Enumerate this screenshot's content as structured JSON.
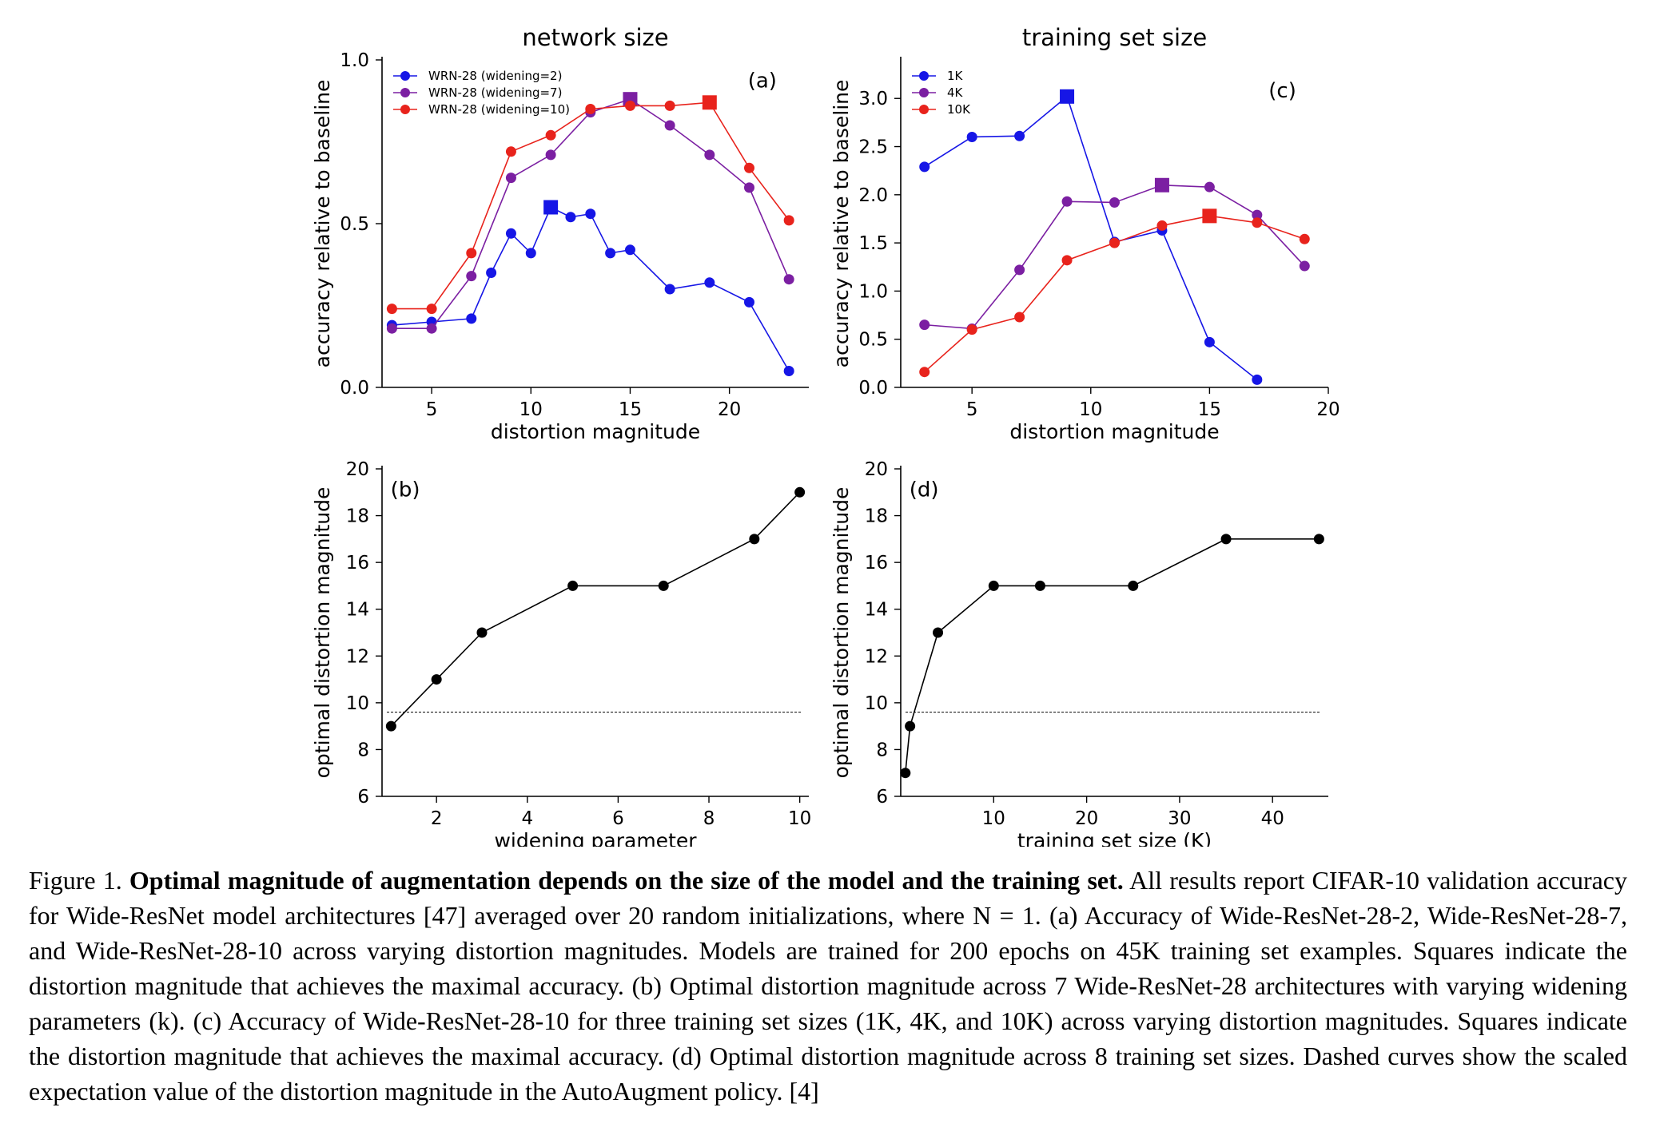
{
  "figure": {
    "chart_data": [
      {
        "type": "line",
        "panel": "(a)",
        "title": "network size",
        "xlabel": "distortion magnitude",
        "ylabel": "accuracy relative to baseline",
        "xlim": [
          2.5,
          24
        ],
        "ylim": [
          0.0,
          1.0
        ],
        "xticks": [
          5,
          10,
          15,
          20
        ],
        "yticks": [
          0.0,
          0.5,
          1.0
        ],
        "ytick_labels": [
          "0.0",
          "0.5",
          "1.0"
        ],
        "legend": "top-left",
        "grid": false,
        "series": [
          {
            "name": "WRN-28 (widening=2)",
            "color": "#1616e6",
            "x": [
              3,
              5,
              7,
              8,
              9,
              10,
              11,
              12,
              13,
              14,
              15,
              17,
              19,
              21,
              23
            ],
            "y": [
              0.19,
              0.2,
              0.21,
              0.35,
              0.47,
              0.41,
              0.55,
              0.52,
              0.53,
              0.41,
              0.42,
              0.3,
              0.32,
              0.26,
              0.05
            ],
            "best_x": 11
          },
          {
            "name": "WRN-28 (widening=7)",
            "color": "#7b1fa2",
            "x": [
              3,
              5,
              7,
              9,
              11,
              13,
              15,
              17,
              19,
              21,
              23
            ],
            "y": [
              0.18,
              0.18,
              0.34,
              0.64,
              0.71,
              0.84,
              0.88,
              0.8,
              0.71,
              0.61,
              0.33
            ],
            "best_x": 15
          },
          {
            "name": "WRN-28 (widening=10)",
            "color": "#e8231c",
            "x": [
              3,
              5,
              7,
              9,
              11,
              13,
              15,
              17,
              19,
              21,
              23
            ],
            "y": [
              0.24,
              0.24,
              0.41,
              0.72,
              0.77,
              0.85,
              0.86,
              0.86,
              0.87,
              0.67,
              0.51
            ],
            "best_x": 19
          }
        ]
      },
      {
        "type": "line",
        "panel": "(b)",
        "title": "",
        "xlabel": "widening parameter",
        "ylabel": "optimal distortion magnitude",
        "xlim": [
          0.8,
          10.2
        ],
        "ylim": [
          6,
          20
        ],
        "xticks": [
          2,
          4,
          6,
          8,
          10
        ],
        "yticks": [
          6,
          8,
          10,
          12,
          14,
          16,
          18,
          20
        ],
        "reference_line": 9.6,
        "grid": false,
        "series": [
          {
            "color": "#000000",
            "x": [
              1,
              2,
              3,
              5,
              7,
              9,
              10
            ],
            "y": [
              9,
              11,
              13,
              15,
              15,
              17,
              19
            ]
          }
        ]
      },
      {
        "type": "line",
        "panel": "(c)",
        "title": "training set size",
        "xlabel": "distortion magnitude",
        "ylabel": "accuracy relative to baseline",
        "xlim": [
          2,
          20
        ],
        "ylim": [
          0.0,
          3.4
        ],
        "xticks": [
          5,
          10,
          15,
          20
        ],
        "yticks": [
          0.0,
          0.5,
          1.0,
          1.5,
          2.0,
          2.5,
          3.0
        ],
        "ytick_labels": [
          "0.0",
          "0.5",
          "1.0",
          "1.5",
          "2.0",
          "2.5",
          "3.0"
        ],
        "legend": "top-left",
        "grid": false,
        "series": [
          {
            "name": "1K",
            "color": "#1616e6",
            "x": [
              3,
              5,
              7,
              9,
              11,
              13,
              15,
              17
            ],
            "y": [
              2.29,
              2.6,
              2.61,
              3.02,
              1.51,
              1.63,
              0.47,
              0.08
            ],
            "best_x": 9
          },
          {
            "name": "4K",
            "color": "#7b1fa2",
            "x": [
              3,
              5,
              7,
              9,
              11,
              13,
              15,
              17,
              19
            ],
            "y": [
              0.65,
              0.61,
              1.22,
              1.93,
              1.92,
              2.1,
              2.08,
              1.79,
              1.26
            ],
            "best_x": 13
          },
          {
            "name": "10K",
            "color": "#e8231c",
            "x": [
              3,
              5,
              7,
              9,
              11,
              13,
              15,
              17,
              19
            ],
            "y": [
              0.16,
              0.6,
              0.73,
              1.32,
              1.5,
              1.68,
              1.78,
              1.71,
              1.54
            ],
            "best_x": 15
          }
        ]
      },
      {
        "type": "line",
        "panel": "(d)",
        "title": "",
        "xlabel": "training set size (K)",
        "ylabel": "optimal distortion magnitude",
        "xlim": [
          0,
          46
        ],
        "ylim": [
          6,
          20
        ],
        "xticks": [
          10,
          20,
          30,
          40
        ],
        "yticks": [
          6,
          8,
          10,
          12,
          14,
          16,
          18,
          20
        ],
        "reference_line": 9.6,
        "grid": false,
        "series": [
          {
            "color": "#000000",
            "x": [
              0.5,
              1,
              4,
              10,
              15,
              25,
              35,
              45
            ],
            "y": [
              7,
              9,
              13,
              15,
              15,
              15,
              17,
              17
            ]
          }
        ]
      }
    ]
  },
  "caption": {
    "label": "Figure 1. ",
    "bold": "Optimal magnitude of augmentation depends on the size of the model and the training set.",
    "body": " All results report CIFAR-10 validation accuracy for Wide-ResNet model architectures [47] averaged over 20 random initializations, where N = 1. (a) Accuracy of Wide-ResNet-28-2, Wide-ResNet-28-7, and Wide-ResNet-28-10 across varying distortion magnitudes. Models are trained for 200 epochs on 45K training set examples. Squares indicate the distortion magnitude that achieves the maximal accuracy. (b) Optimal distortion magnitude across 7 Wide-ResNet-28 architectures with varying widening parameters (k). (c) Accuracy of Wide-ResNet-28-10 for three training set sizes (1K, 4K, and 10K) across varying distortion magnitudes. Squares indicate the distortion magnitude that achieves the maximal accuracy. (d) Optimal distortion magnitude across 8 training set sizes. Dashed curves show the scaled expectation value of the distortion magnitude in the AutoAugment policy. [4]"
  }
}
